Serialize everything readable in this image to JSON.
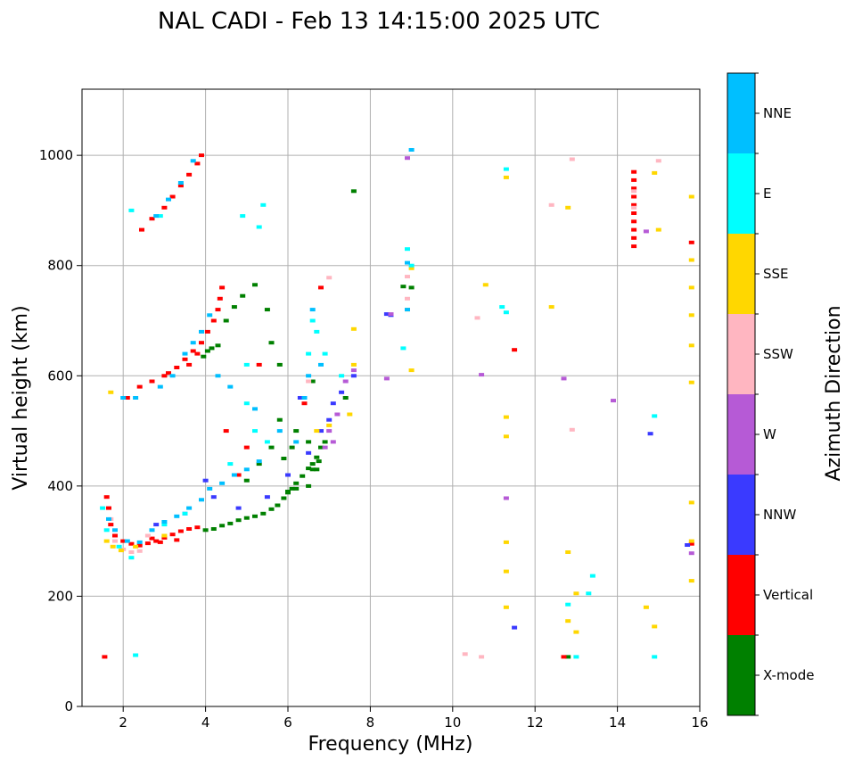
{
  "chart_data": {
    "type": "scatter",
    "title": "NAL CADI - Feb 13 14:15:00 2025 UTC",
    "xlabel": "Frequency (MHz)",
    "ylabel": "Virtual height (km)",
    "xlim": [
      1.0,
      16.0
    ],
    "ylim": [
      0,
      1120
    ],
    "xticks": [
      2,
      4,
      6,
      8,
      10,
      12,
      14,
      16
    ],
    "yticks": [
      0,
      200,
      400,
      600,
      800,
      1000
    ],
    "grid": true,
    "colorbar": {
      "label": "Azimuth Direction",
      "categories": [
        {
          "name": "X-mode",
          "color": "#008000"
        },
        {
          "name": "Vertical",
          "color": "#ff0000"
        },
        {
          "name": "NNW",
          "color": "#3a3aff"
        },
        {
          "name": "W",
          "color": "#b65ad6"
        },
        {
          "name": "SSW",
          "color": "#ffb6c1"
        },
        {
          "name": "SSE",
          "color": "#ffd700"
        },
        {
          "name": "E",
          "color": "#00ffff"
        },
        {
          "name": "NNE",
          "color": "#00bfff"
        }
      ]
    },
    "series": [
      {
        "name": "X-mode",
        "color": "#008000",
        "points": [
          [
            3.95,
            635
          ],
          [
            4.05,
            645
          ],
          [
            4.15,
            650
          ],
          [
            4.3,
            655
          ],
          [
            4.5,
            700
          ],
          [
            4.7,
            725
          ],
          [
            4.9,
            745
          ],
          [
            5.2,
            765
          ],
          [
            5.5,
            720
          ],
          [
            5.6,
            660
          ],
          [
            5.8,
            620
          ],
          [
            5.9,
            450
          ],
          [
            6.1,
            470
          ],
          [
            6.6,
            430
          ],
          [
            6.7,
            430
          ],
          [
            6.75,
            445
          ],
          [
            6.5,
            480
          ],
          [
            6.5,
            400
          ],
          [
            6.2,
            395
          ],
          [
            6.0,
            390
          ],
          [
            4.0,
            320
          ],
          [
            4.2,
            322
          ],
          [
            4.4,
            328
          ],
          [
            4.6,
            332
          ],
          [
            4.8,
            338
          ],
          [
            5.0,
            342
          ],
          [
            5.2,
            345
          ],
          [
            5.4,
            350
          ],
          [
            5.6,
            358
          ],
          [
            5.75,
            365
          ],
          [
            5.9,
            378
          ],
          [
            6.0,
            388
          ],
          [
            6.1,
            395
          ],
          [
            6.2,
            405
          ],
          [
            6.35,
            418
          ],
          [
            6.5,
            432
          ],
          [
            6.6,
            440
          ],
          [
            6.7,
            452
          ],
          [
            6.8,
            470
          ],
          [
            6.9,
            480
          ],
          [
            5.0,
            410
          ],
          [
            5.3,
            440
          ],
          [
            5.6,
            470
          ],
          [
            5.8,
            520
          ],
          [
            6.2,
            500
          ],
          [
            6.4,
            560
          ],
          [
            6.6,
            590
          ],
          [
            7.4,
            560
          ],
          [
            7.6,
            935
          ],
          [
            9.0,
            760
          ],
          [
            8.8,
            762
          ],
          [
            12.8,
            90
          ]
        ]
      },
      {
        "name": "Vertical",
        "color": "#ff0000",
        "points": [
          [
            1.6,
            380
          ],
          [
            1.65,
            360
          ],
          [
            1.7,
            330
          ],
          [
            1.8,
            310
          ],
          [
            2.0,
            300
          ],
          [
            2.2,
            295
          ],
          [
            2.4,
            292
          ],
          [
            2.6,
            296
          ],
          [
            2.8,
            300
          ],
          [
            3.0,
            306
          ],
          [
            3.2,
            312
          ],
          [
            3.4,
            318
          ],
          [
            3.6,
            322
          ],
          [
            3.8,
            325
          ],
          [
            2.7,
            305
          ],
          [
            2.9,
            298
          ],
          [
            3.3,
            302
          ],
          [
            1.55,
            90
          ],
          [
            2.1,
            560
          ],
          [
            2.4,
            580
          ],
          [
            2.7,
            590
          ],
          [
            3.0,
            600
          ],
          [
            3.3,
            615
          ],
          [
            3.5,
            630
          ],
          [
            3.7,
            645
          ],
          [
            3.9,
            660
          ],
          [
            4.05,
            680
          ],
          [
            4.2,
            700
          ],
          [
            4.3,
            720
          ],
          [
            4.35,
            740
          ],
          [
            4.4,
            760
          ],
          [
            3.6,
            620
          ],
          [
            3.8,
            640
          ],
          [
            3.1,
            605
          ],
          [
            2.45,
            865
          ],
          [
            2.7,
            885
          ],
          [
            3.0,
            905
          ],
          [
            3.2,
            925
          ],
          [
            3.4,
            945
          ],
          [
            3.6,
            965
          ],
          [
            3.8,
            985
          ],
          [
            3.9,
            1000
          ],
          [
            14.4,
            970
          ],
          [
            14.4,
            955
          ],
          [
            14.4,
            940
          ],
          [
            14.4,
            925
          ],
          [
            14.4,
            910
          ],
          [
            14.4,
            895
          ],
          [
            14.4,
            880
          ],
          [
            14.4,
            865
          ],
          [
            14.4,
            850
          ],
          [
            14.4,
            835
          ],
          [
            15.8,
            842
          ],
          [
            15.8,
            295
          ],
          [
            12.7,
            90
          ],
          [
            11.5,
            647
          ],
          [
            6.8,
            760
          ],
          [
            6.4,
            550
          ],
          [
            5.3,
            620
          ],
          [
            4.5,
            500
          ],
          [
            5.0,
            470
          ],
          [
            4.8,
            420
          ]
        ]
      },
      {
        "name": "NNW",
        "color": "#3a3aff",
        "points": [
          [
            4.0,
            410
          ],
          [
            4.8,
            360
          ],
          [
            5.5,
            380
          ],
          [
            6.0,
            420
          ],
          [
            6.5,
            460
          ],
          [
            6.8,
            500
          ],
          [
            7.0,
            520
          ],
          [
            7.1,
            550
          ],
          [
            7.3,
            570
          ],
          [
            7.6,
            600
          ],
          [
            6.3,
            560
          ],
          [
            8.4,
            712
          ],
          [
            8.5,
            710
          ],
          [
            14.8,
            495
          ],
          [
            15.7,
            293
          ],
          [
            11.5,
            143
          ],
          [
            4.2,
            380
          ],
          [
            3.5,
            350
          ],
          [
            2.8,
            330
          ]
        ]
      },
      {
        "name": "W",
        "color": "#b65ad6",
        "points": [
          [
            7.0,
            500
          ],
          [
            7.2,
            530
          ],
          [
            7.4,
            590
          ],
          [
            7.6,
            610
          ],
          [
            8.4,
            595
          ],
          [
            8.5,
            712
          ],
          [
            10.7,
            602
          ],
          [
            11.3,
            378
          ],
          [
            12.7,
            595
          ],
          [
            13.9,
            555
          ],
          [
            14.7,
            862
          ],
          [
            15.8,
            278
          ],
          [
            6.9,
            470
          ],
          [
            7.1,
            480
          ],
          [
            8.9,
            995
          ]
        ]
      },
      {
        "name": "SSW",
        "color": "#ffb6c1",
        "points": [
          [
            1.8,
            300
          ],
          [
            2.0,
            285
          ],
          [
            2.2,
            280
          ],
          [
            2.4,
            282
          ],
          [
            1.7,
            340
          ],
          [
            2.6,
            310
          ],
          [
            8.9,
            780
          ],
          [
            8.9,
            740
          ],
          [
            10.6,
            705
          ],
          [
            10.3,
            95
          ],
          [
            10.7,
            90
          ],
          [
            12.4,
            910
          ],
          [
            12.9,
            993
          ],
          [
            12.9,
            502
          ],
          [
            15.0,
            990
          ],
          [
            14.4,
            935
          ],
          [
            14.4,
            905
          ],
          [
            7.0,
            778
          ],
          [
            6.5,
            590
          ]
        ]
      },
      {
        "name": "SSE",
        "color": "#ffd700",
        "points": [
          [
            1.6,
            300
          ],
          [
            1.75,
            290
          ],
          [
            1.95,
            283
          ],
          [
            2.3,
            290
          ],
          [
            3.0,
            310
          ],
          [
            6.7,
            500
          ],
          [
            7.0,
            510
          ],
          [
            7.5,
            530
          ],
          [
            7.6,
            620
          ],
          [
            7.6,
            685
          ],
          [
            8.9,
            720
          ],
          [
            9.0,
            795
          ],
          [
            9.0,
            610
          ],
          [
            10.8,
            765
          ],
          [
            11.3,
            960
          ],
          [
            11.3,
            525
          ],
          [
            11.3,
            490
          ],
          [
            11.3,
            298
          ],
          [
            11.3,
            245
          ],
          [
            11.3,
            180
          ],
          [
            12.4,
            725
          ],
          [
            12.8,
            905
          ],
          [
            12.8,
            280
          ],
          [
            12.8,
            155
          ],
          [
            13.0,
            135
          ],
          [
            13.0,
            205
          ],
          [
            14.7,
            180
          ],
          [
            14.9,
            145
          ],
          [
            14.9,
            968
          ],
          [
            15.0,
            865
          ],
          [
            15.8,
            925
          ],
          [
            15.8,
            810
          ],
          [
            15.8,
            760
          ],
          [
            15.8,
            710
          ],
          [
            15.8,
            655
          ],
          [
            15.8,
            588
          ],
          [
            15.8,
            370
          ],
          [
            15.8,
            300
          ],
          [
            15.8,
            228
          ],
          [
            1.7,
            570
          ]
        ]
      },
      {
        "name": "E",
        "color": "#00ffff",
        "points": [
          [
            1.5,
            360
          ],
          [
            1.6,
            320
          ],
          [
            1.9,
            290
          ],
          [
            2.2,
            270
          ],
          [
            2.3,
            93
          ],
          [
            3.0,
            330
          ],
          [
            3.5,
            350
          ],
          [
            4.6,
            440
          ],
          [
            5.0,
            550
          ],
          [
            5.2,
            500
          ],
          [
            5.5,
            480
          ],
          [
            4.9,
            890
          ],
          [
            5.3,
            870
          ],
          [
            5.4,
            910
          ],
          [
            5.0,
            620
          ],
          [
            6.5,
            640
          ],
          [
            6.6,
            700
          ],
          [
            6.7,
            680
          ],
          [
            6.9,
            640
          ],
          [
            7.3,
            600
          ],
          [
            8.9,
            830
          ],
          [
            9.0,
            800
          ],
          [
            8.8,
            650
          ],
          [
            11.3,
            975
          ],
          [
            11.3,
            715
          ],
          [
            11.2,
            725
          ],
          [
            12.8,
            185
          ],
          [
            13.0,
            90
          ],
          [
            13.3,
            205
          ],
          [
            13.4,
            237
          ],
          [
            14.9,
            527
          ],
          [
            14.9,
            90
          ],
          [
            2.2,
            900
          ],
          [
            2.9,
            890
          ]
        ]
      },
      {
        "name": "NNE",
        "color": "#00bfff",
        "points": [
          [
            1.65,
            340
          ],
          [
            1.8,
            320
          ],
          [
            2.1,
            300
          ],
          [
            2.4,
            298
          ],
          [
            2.7,
            320
          ],
          [
            3.0,
            335
          ],
          [
            3.3,
            345
          ],
          [
            3.6,
            360
          ],
          [
            3.9,
            375
          ],
          [
            4.1,
            395
          ],
          [
            4.4,
            405
          ],
          [
            4.7,
            420
          ],
          [
            5.0,
            430
          ],
          [
            5.3,
            445
          ],
          [
            2.9,
            580
          ],
          [
            3.2,
            600
          ],
          [
            3.5,
            640
          ],
          [
            3.7,
            660
          ],
          [
            3.9,
            680
          ],
          [
            4.1,
            710
          ],
          [
            4.3,
            600
          ],
          [
            4.6,
            580
          ],
          [
            5.2,
            540
          ],
          [
            5.8,
            500
          ],
          [
            6.2,
            480
          ],
          [
            6.4,
            560
          ],
          [
            6.5,
            600
          ],
          [
            6.6,
            720
          ],
          [
            6.8,
            620
          ],
          [
            2.8,
            890
          ],
          [
            3.1,
            920
          ],
          [
            3.4,
            950
          ],
          [
            3.7,
            990
          ],
          [
            8.9,
            805
          ],
          [
            9.0,
            1010
          ],
          [
            8.9,
            720
          ],
          [
            2.0,
            560
          ],
          [
            2.3,
            560
          ]
        ]
      }
    ]
  }
}
